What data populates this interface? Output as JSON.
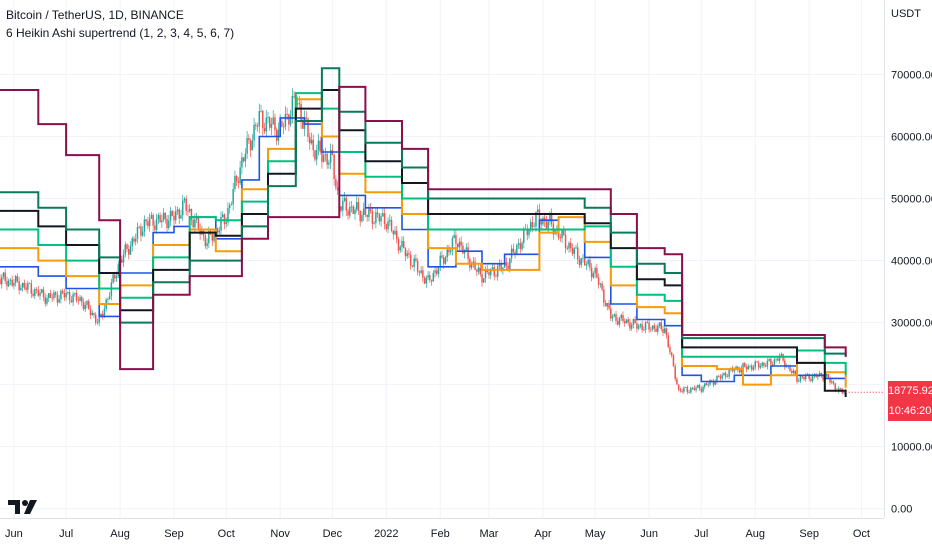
{
  "header": {
    "title": "Bitcoin / TetherUS, 1D, BINANCE",
    "indicator": "6 Heikin Ashi supertrend (1, 2, 3, 4, 5, 6, 7)"
  },
  "axis": {
    "unit": "USDT"
  },
  "price_badge": {
    "price": "18775.92",
    "countdown": "10:46:20"
  },
  "colors": {
    "background": "#ffffff",
    "grid": "#f0f3fa",
    "up_candle": "#26a69a",
    "down_candle": "#ef5350",
    "badge": "#f23645"
  },
  "chart_data": {
    "type": "line",
    "title": "Bitcoin / TetherUS, 1D, BINANCE",
    "ylabel": "USDT",
    "ylim": [
      -1500,
      82000
    ],
    "xlim": [
      "2021-05-24",
      "2022-10-14"
    ],
    "grid": true,
    "x_ticks": [
      {
        "label": "Jun",
        "date": "2021-06-01"
      },
      {
        "label": "Jul",
        "date": "2021-07-01"
      },
      {
        "label": "Aug",
        "date": "2021-08-01"
      },
      {
        "label": "Sep",
        "date": "2021-09-01"
      },
      {
        "label": "Oct",
        "date": "2021-10-01"
      },
      {
        "label": "Nov",
        "date": "2021-11-01"
      },
      {
        "label": "Dec",
        "date": "2021-12-01"
      },
      {
        "label": "2022",
        "date": "2022-01-01"
      },
      {
        "label": "Feb",
        "date": "2022-02-01"
      },
      {
        "label": "Mar",
        "date": "2022-03-01"
      },
      {
        "label": "Apr",
        "date": "2022-04-01"
      },
      {
        "label": "May",
        "date": "2022-05-01"
      },
      {
        "label": "Jun",
        "date": "2022-06-01"
      },
      {
        "label": "Jul",
        "date": "2022-07-01"
      },
      {
        "label": "Aug",
        "date": "2022-08-01"
      },
      {
        "label": "Sep",
        "date": "2022-09-01"
      },
      {
        "label": "Oct",
        "date": "2022-10-01"
      }
    ],
    "y_ticks": [
      {
        "label": "0.00",
        "value": 0
      },
      {
        "label": "10000.00",
        "value": 10000
      },
      {
        "label": "20000.00",
        "value": 20000
      },
      {
        "label": "30000.00",
        "value": 30000
      },
      {
        "label": "40000.00",
        "value": 40000
      },
      {
        "label": "50000.00",
        "value": 50000
      },
      {
        "label": "60000.00",
        "value": 60000
      },
      {
        "label": "70000.00",
        "value": 70000
      }
    ],
    "price_close": [
      [
        "2021-05-24",
        37000
      ],
      [
        "2021-06-01",
        36500
      ],
      [
        "2021-06-10",
        35500
      ],
      [
        "2021-06-20",
        34000
      ],
      [
        "2021-07-01",
        34500
      ],
      [
        "2021-07-10",
        33500
      ],
      [
        "2021-07-20",
        30000
      ],
      [
        "2021-08-01",
        40000
      ],
      [
        "2021-08-15",
        46000
      ],
      [
        "2021-09-01",
        47000
      ],
      [
        "2021-09-07",
        49000
      ],
      [
        "2021-09-20",
        43000
      ],
      [
        "2021-10-01",
        47000
      ],
      [
        "2021-10-10",
        56000
      ],
      [
        "2021-10-20",
        63000
      ],
      [
        "2021-11-01",
        61000
      ],
      [
        "2021-11-10",
        66000
      ],
      [
        "2021-11-20",
        58000
      ],
      [
        "2021-12-01",
        56000
      ],
      [
        "2021-12-05",
        49000
      ],
      [
        "2021-12-20",
        47500
      ],
      [
        "2022-01-01",
        46500
      ],
      [
        "2022-01-10",
        42000
      ],
      [
        "2022-01-25",
        36500
      ],
      [
        "2022-02-10",
        43500
      ],
      [
        "2022-02-24",
        37500
      ],
      [
        "2022-03-10",
        39000
      ],
      [
        "2022-03-28",
        47000
      ],
      [
        "2022-04-05",
        46000
      ],
      [
        "2022-04-20",
        41000
      ],
      [
        "2022-05-01",
        38000
      ],
      [
        "2022-05-10",
        31000
      ],
      [
        "2022-05-25",
        29500
      ],
      [
        "2022-06-10",
        29000
      ],
      [
        "2022-06-18",
        19000
      ],
      [
        "2022-07-01",
        19500
      ],
      [
        "2022-07-20",
        22500
      ],
      [
        "2022-08-10",
        23500
      ],
      [
        "2022-08-15",
        24500
      ],
      [
        "2022-08-25",
        21000
      ],
      [
        "2022-09-10",
        21500
      ],
      [
        "2022-09-18",
        19000
      ],
      [
        "2022-09-22",
        18775.92
      ]
    ],
    "series": [
      {
        "color": "#1e53e5",
        "width": 1.6,
        "points": [
          [
            "2021-05-24",
            39000
          ],
          [
            "2021-06-15",
            37500
          ],
          [
            "2021-07-01",
            35500
          ],
          [
            "2021-07-20",
            31000
          ],
          [
            "2021-08-01",
            38000
          ],
          [
            "2021-08-20",
            44500
          ],
          [
            "2021-09-01",
            45500
          ],
          [
            "2021-09-10",
            47000
          ],
          [
            "2021-09-25",
            43500
          ],
          [
            "2021-10-10",
            53000
          ],
          [
            "2021-10-20",
            60000
          ],
          [
            "2021-11-01",
            63000
          ],
          [
            "2021-11-15",
            62000
          ],
          [
            "2021-11-25",
            57500
          ],
          [
            "2021-12-05",
            50500
          ],
          [
            "2021-12-20",
            48500
          ],
          [
            "2022-01-10",
            45000
          ],
          [
            "2022-01-25",
            39000
          ],
          [
            "2022-02-10",
            41500
          ],
          [
            "2022-02-25",
            39500
          ],
          [
            "2022-03-10",
            41000
          ],
          [
            "2022-03-30",
            46500
          ],
          [
            "2022-04-10",
            45000
          ],
          [
            "2022-04-25",
            40500
          ],
          [
            "2022-05-10",
            33000
          ],
          [
            "2022-05-25",
            30500
          ],
          [
            "2022-06-10",
            29500
          ],
          [
            "2022-06-20",
            21500
          ],
          [
            "2022-07-01",
            20500
          ],
          [
            "2022-07-20",
            21500
          ],
          [
            "2022-08-10",
            23000
          ],
          [
            "2022-08-25",
            21500
          ],
          [
            "2022-09-10",
            21000
          ],
          [
            "2022-09-22",
            19800
          ]
        ]
      },
      {
        "color": "#f59b0c",
        "width": 2,
        "points": [
          [
            "2021-05-24",
            42000
          ],
          [
            "2021-06-15",
            40000
          ],
          [
            "2021-07-01",
            37500
          ],
          [
            "2021-07-20",
            33000
          ],
          [
            "2021-08-01",
            36000
          ],
          [
            "2021-08-20",
            42500
          ],
          [
            "2021-09-10",
            45000
          ],
          [
            "2021-09-25",
            41500
          ],
          [
            "2021-10-10",
            51500
          ],
          [
            "2021-10-25",
            58000
          ],
          [
            "2021-11-10",
            66000
          ],
          [
            "2021-11-25",
            60000
          ],
          [
            "2021-12-05",
            54000
          ],
          [
            "2021-12-20",
            51000
          ],
          [
            "2022-01-10",
            47500
          ],
          [
            "2022-01-25",
            42000
          ],
          [
            "2022-02-10",
            39500
          ],
          [
            "2022-02-25",
            38500
          ],
          [
            "2022-03-10",
            38500
          ],
          [
            "2022-03-30",
            44500
          ],
          [
            "2022-04-10",
            47000
          ],
          [
            "2022-04-25",
            43000
          ],
          [
            "2022-05-10",
            36000
          ],
          [
            "2022-05-25",
            32500
          ],
          [
            "2022-06-10",
            31500
          ],
          [
            "2022-06-20",
            23000
          ],
          [
            "2022-07-10",
            22500
          ],
          [
            "2022-07-25",
            20000
          ],
          [
            "2022-08-10",
            21500
          ],
          [
            "2022-08-25",
            23500
          ],
          [
            "2022-09-10",
            22000
          ],
          [
            "2022-09-22",
            19500
          ]
        ]
      },
      {
        "color": "#00c07f",
        "width": 2,
        "points": [
          [
            "2021-05-24",
            45000
          ],
          [
            "2021-06-15",
            42500
          ],
          [
            "2021-07-01",
            40000
          ],
          [
            "2021-07-20",
            35500
          ],
          [
            "2021-08-01",
            34000
          ],
          [
            "2021-08-20",
            40500
          ],
          [
            "2021-09-10",
            47000
          ],
          [
            "2021-09-25",
            46500
          ],
          [
            "2021-10-10",
            49500
          ],
          [
            "2021-10-25",
            56000
          ],
          [
            "2021-11-10",
            67000
          ],
          [
            "2021-11-25",
            64500
          ],
          [
            "2021-12-05",
            57500
          ],
          [
            "2021-12-20",
            53500
          ],
          [
            "2022-01-10",
            50000
          ],
          [
            "2022-01-25",
            45000
          ],
          [
            "2022-02-10",
            45000
          ],
          [
            "2022-03-10",
            45000
          ],
          [
            "2022-04-05",
            45000
          ],
          [
            "2022-04-25",
            45500
          ],
          [
            "2022-05-10",
            39000
          ],
          [
            "2022-05-25",
            34500
          ],
          [
            "2022-06-10",
            33500
          ],
          [
            "2022-06-20",
            24500
          ],
          [
            "2022-07-10",
            24500
          ],
          [
            "2022-08-10",
            24500
          ],
          [
            "2022-08-25",
            25500
          ],
          [
            "2022-09-10",
            23500
          ],
          [
            "2022-09-22",
            21500
          ]
        ]
      },
      {
        "color": "#131722",
        "width": 2,
        "points": [
          [
            "2021-05-24",
            48000
          ],
          [
            "2021-06-15",
            45500
          ],
          [
            "2021-07-01",
            42500
          ],
          [
            "2021-07-20",
            38000
          ],
          [
            "2021-08-01",
            32000
          ],
          [
            "2021-08-20",
            38500
          ],
          [
            "2021-09-10",
            44500
          ],
          [
            "2021-09-25",
            44000
          ],
          [
            "2021-10-10",
            47500
          ],
          [
            "2021-10-25",
            54000
          ],
          [
            "2021-11-10",
            64500
          ],
          [
            "2021-11-25",
            67500
          ],
          [
            "2021-12-05",
            61000
          ],
          [
            "2021-12-20",
            56000
          ],
          [
            "2022-01-10",
            52500
          ],
          [
            "2022-01-25",
            47500
          ],
          [
            "2022-02-10",
            47500
          ],
          [
            "2022-03-10",
            47500
          ],
          [
            "2022-04-05",
            47500
          ],
          [
            "2022-04-25",
            46000
          ],
          [
            "2022-05-10",
            42000
          ],
          [
            "2022-05-25",
            37000
          ],
          [
            "2022-06-10",
            36000
          ],
          [
            "2022-06-20",
            26000
          ],
          [
            "2022-07-10",
            26000
          ],
          [
            "2022-08-10",
            26000
          ],
          [
            "2022-08-25",
            23500
          ],
          [
            "2022-09-10",
            19000
          ],
          [
            "2022-09-22",
            18000
          ]
        ]
      },
      {
        "color": "#0a7a5c",
        "width": 2,
        "points": [
          [
            "2021-05-24",
            51000
          ],
          [
            "2021-06-15",
            48500
          ],
          [
            "2021-07-01",
            45000
          ],
          [
            "2021-07-20",
            40500
          ],
          [
            "2021-08-01",
            30000
          ],
          [
            "2021-08-20",
            36500
          ],
          [
            "2021-09-10",
            40000
          ],
          [
            "2021-09-25",
            40000
          ],
          [
            "2021-10-10",
            45500
          ],
          [
            "2021-10-25",
            52000
          ],
          [
            "2021-11-10",
            62500
          ],
          [
            "2021-11-25",
            71000
          ],
          [
            "2021-12-05",
            64000
          ],
          [
            "2021-12-20",
            59000
          ],
          [
            "2022-01-10",
            55000
          ],
          [
            "2022-01-25",
            50000
          ],
          [
            "2022-02-10",
            50000
          ],
          [
            "2022-03-10",
            50000
          ],
          [
            "2022-04-05",
            50000
          ],
          [
            "2022-04-25",
            48500
          ],
          [
            "2022-05-10",
            44500
          ],
          [
            "2022-05-25",
            39500
          ],
          [
            "2022-06-10",
            38000
          ],
          [
            "2022-06-20",
            27500
          ],
          [
            "2022-07-10",
            27500
          ],
          [
            "2022-08-10",
            27500
          ],
          [
            "2022-09-10",
            25000
          ],
          [
            "2022-09-22",
            24500
          ]
        ]
      },
      {
        "color": "#8a0f4c",
        "width": 2,
        "points": [
          [
            "2021-05-24",
            67500
          ],
          [
            "2021-06-15",
            62000
          ],
          [
            "2021-07-01",
            57000
          ],
          [
            "2021-07-20",
            46500
          ],
          [
            "2021-08-01",
            22500
          ],
          [
            "2021-08-20",
            34500
          ],
          [
            "2021-09-10",
            37500
          ],
          [
            "2021-09-25",
            37500
          ],
          [
            "2021-10-10",
            43500
          ],
          [
            "2021-10-25",
            47000
          ],
          [
            "2021-11-10",
            47000
          ],
          [
            "2021-11-25",
            47000
          ],
          [
            "2021-12-05",
            68000
          ],
          [
            "2021-12-20",
            62500
          ],
          [
            "2022-01-10",
            58000
          ],
          [
            "2022-01-25",
            51500
          ],
          [
            "2022-02-10",
            51500
          ],
          [
            "2022-03-10",
            51500
          ],
          [
            "2022-04-05",
            51500
          ],
          [
            "2022-04-25",
            51500
          ],
          [
            "2022-05-10",
            47500
          ],
          [
            "2022-05-25",
            42000
          ],
          [
            "2022-06-10",
            41000
          ],
          [
            "2022-06-20",
            28000
          ],
          [
            "2022-07-10",
            28000
          ],
          [
            "2022-08-10",
            28000
          ],
          [
            "2022-09-10",
            26000
          ],
          [
            "2022-09-22",
            24500
          ]
        ]
      }
    ]
  }
}
